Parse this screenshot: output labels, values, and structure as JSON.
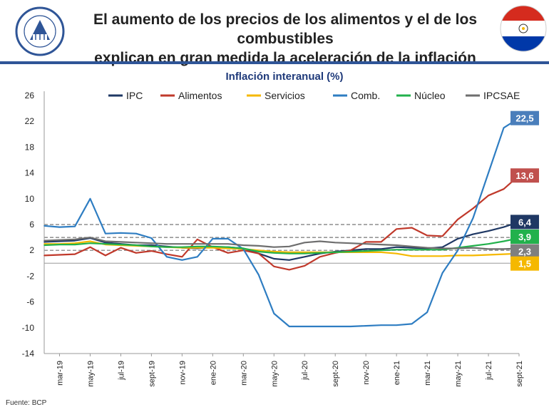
{
  "header": {
    "title_line1": "El aumento de los precios de los alimentos y el de los combustibles",
    "title_line2": "explican en gran medida la aceleración de la inflación",
    "logo_label": "BANCO CENTRAL DEL PARAGUAY",
    "flag_icon": "paraguay-flag-icon"
  },
  "source": "Fuente: BCP",
  "colors": {
    "header_rule": "#2f5597",
    "IPC": "#1f3864",
    "Alimentos": "#c0392b",
    "Servicios": "#f5b800",
    "Comb": "#2e7dc2",
    "Nucleo": "#22b14c",
    "IPCSAE": "#6e6e6e"
  },
  "chart_data": {
    "type": "line",
    "title": "Inflación interanual (%)",
    "xlabel": "",
    "ylabel": "",
    "ylim": [
      -14,
      26
    ],
    "yticks": [
      26,
      22,
      18,
      14,
      10,
      6,
      2,
      -2,
      -6,
      -10,
      -14
    ],
    "x_tick_labels": [
      "mar-19",
      "may-19",
      "jul-19",
      "sept-19",
      "nov-19",
      "ene-20",
      "mar-20",
      "may-20",
      "jul-20",
      "sept-20",
      "nov-20",
      "ene-21",
      "mar-21",
      "may-21",
      "jul-21",
      "sept-21"
    ],
    "months": [
      "feb-19",
      "mar-19",
      "abr-19",
      "may-19",
      "jun-19",
      "jul-19",
      "ago-19",
      "sept-19",
      "oct-19",
      "nov-19",
      "dic-19",
      "ene-20",
      "feb-20",
      "mar-20",
      "abr-20",
      "may-20",
      "jun-20",
      "jul-20",
      "ago-20",
      "sept-20",
      "oct-20",
      "nov-20",
      "dic-20",
      "ene-21",
      "feb-21",
      "mar-21",
      "abr-21",
      "may-21",
      "jun-21",
      "jul-21",
      "ago-21",
      "sept-21"
    ],
    "series": [
      {
        "name": "IPC",
        "color_key": "IPC",
        "values": [
          3.3,
          3.4,
          3.5,
          3.9,
          3.2,
          3.0,
          2.8,
          2.8,
          2.6,
          2.4,
          2.3,
          2.5,
          2.5,
          2.3,
          1.5,
          0.7,
          0.5,
          1.0,
          1.5,
          1.8,
          2.0,
          2.2,
          2.2,
          2.5,
          2.4,
          2.3,
          2.5,
          3.8,
          4.5,
          5.0,
          5.6,
          6.4
        ]
      },
      {
        "name": "Alimentos",
        "color_key": "Alimentos",
        "values": [
          1.2,
          1.3,
          1.4,
          2.5,
          1.2,
          2.4,
          1.6,
          1.9,
          1.4,
          1.0,
          3.7,
          2.5,
          1.6,
          2.0,
          1.5,
          -0.5,
          -1.0,
          -0.4,
          1.0,
          1.6,
          2.0,
          3.3,
          3.3,
          5.3,
          5.5,
          4.3,
          4.2,
          6.8,
          8.5,
          10.5,
          11.5,
          13.6
        ]
      },
      {
        "name": "Servicios",
        "color_key": "Servicios",
        "values": [
          3.0,
          3.0,
          3.1,
          3.4,
          2.9,
          2.8,
          2.7,
          2.6,
          2.5,
          2.4,
          2.4,
          2.4,
          2.3,
          2.2,
          2.0,
          1.8,
          1.7,
          1.7,
          1.7,
          1.7,
          1.7,
          1.7,
          1.7,
          1.5,
          1.1,
          1.1,
          1.1,
          1.2,
          1.2,
          1.3,
          1.4,
          1.5
        ]
      },
      {
        "name": "Comb.",
        "color_key": "Comb",
        "values": [
          5.8,
          5.6,
          5.7,
          10.0,
          4.6,
          4.7,
          4.6,
          3.9,
          1.0,
          0.5,
          1.0,
          3.8,
          3.8,
          2.2,
          -1.8,
          -7.8,
          -9.8,
          -9.8,
          -9.8,
          -9.8,
          -9.8,
          -9.7,
          -9.6,
          -9.6,
          -9.4,
          -7.6,
          -1.5,
          2.0,
          7.0,
          14.0,
          21.0,
          22.5
        ]
      },
      {
        "name": "Núcleo",
        "color_key": "Nucleo",
        "values": [
          2.8,
          2.9,
          2.9,
          3.1,
          3.0,
          2.9,
          2.8,
          2.6,
          2.5,
          2.5,
          2.6,
          2.6,
          2.5,
          2.3,
          1.8,
          1.6,
          1.5,
          1.5,
          1.6,
          1.7,
          1.8,
          1.9,
          2.0,
          2.1,
          2.1,
          2.1,
          2.1,
          2.4,
          2.7,
          3.0,
          3.4,
          3.9
        ]
      },
      {
        "name": "IPCSAE",
        "color_key": "IPCSAE",
        "values": [
          3.5,
          3.6,
          3.7,
          4.0,
          3.4,
          3.3,
          3.2,
          3.1,
          3.0,
          3.0,
          3.0,
          3.0,
          3.0,
          2.8,
          2.7,
          2.5,
          2.6,
          3.2,
          3.4,
          3.2,
          3.1,
          3.0,
          2.9,
          2.8,
          2.6,
          2.4,
          2.3,
          2.3,
          2.4,
          2.2,
          2.2,
          2.3
        ]
      }
    ],
    "reference_lines": [
      6.0,
      4.0,
      2.0
    ],
    "end_labels": [
      {
        "series": "Comb.",
        "text": "22,5",
        "color": "#4a7ebb"
      },
      {
        "series": "Alimentos",
        "text": "13,6",
        "color": "#c0504d"
      },
      {
        "series": "IPC",
        "text": "6,4",
        "color": "#1f3864"
      },
      {
        "series": "Núcleo",
        "text": "3,9",
        "color": "#22b14c"
      },
      {
        "series": "IPCSAE",
        "text": "2,3",
        "color": "#7f7f7f"
      },
      {
        "series": "Servicios",
        "text": "1,5",
        "color": "#f5b800"
      }
    ],
    "legend_position": "top"
  }
}
